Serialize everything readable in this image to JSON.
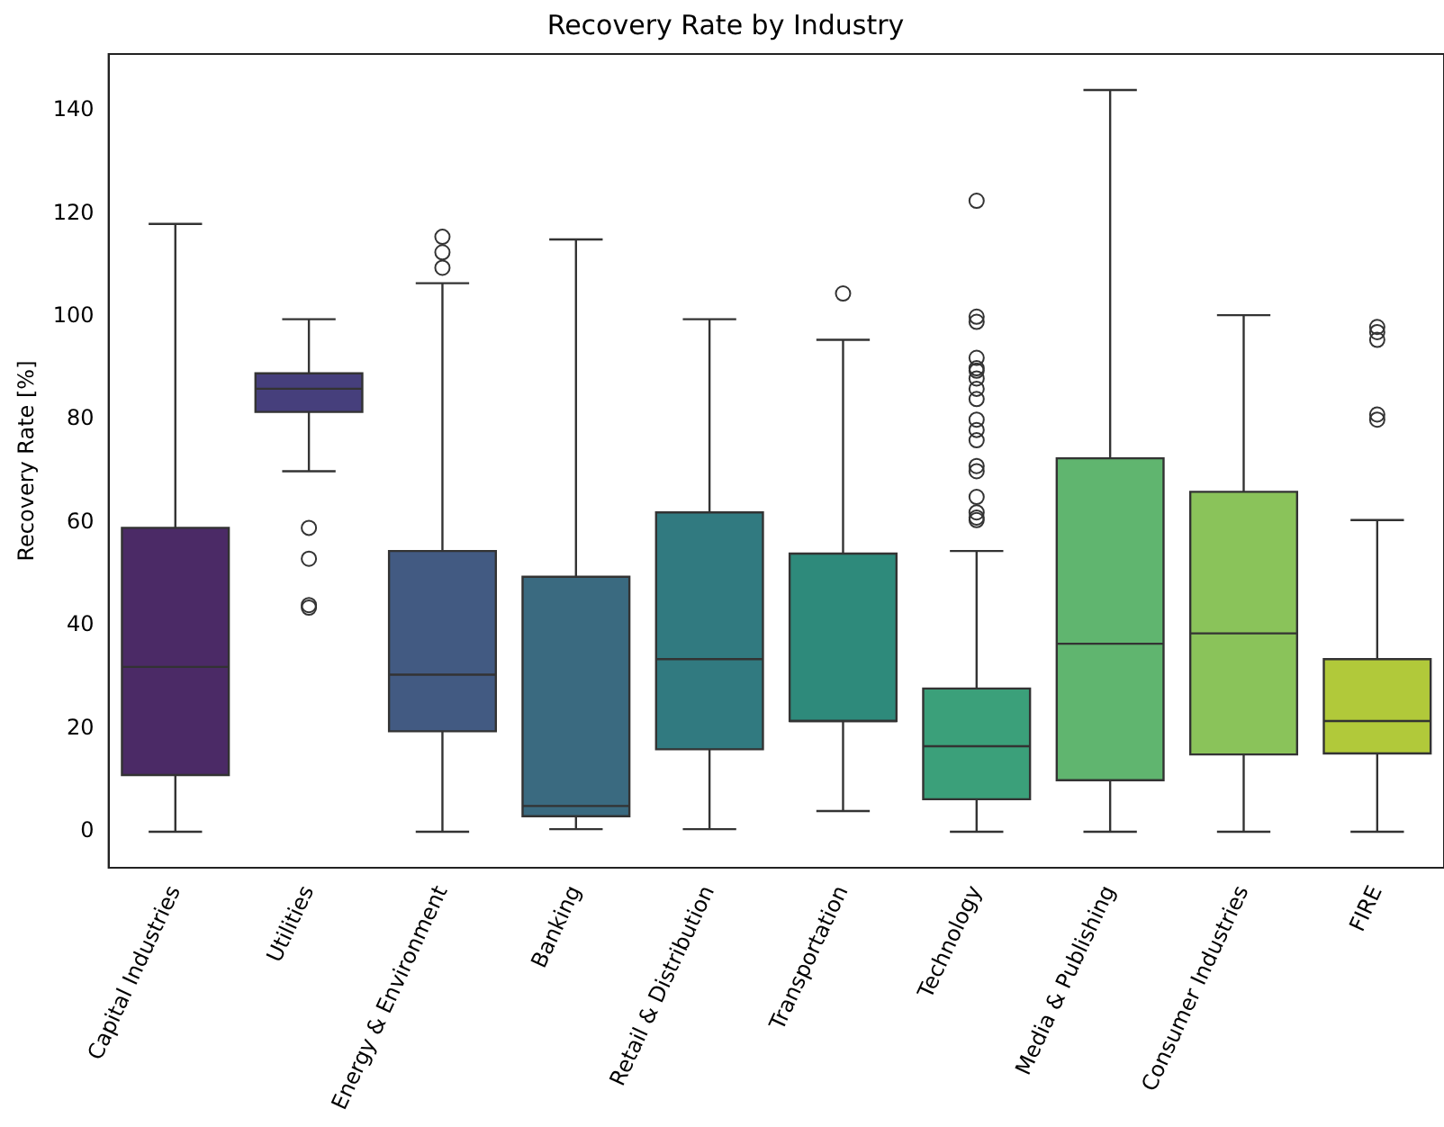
{
  "chart_data": {
    "type": "box",
    "title": "Recovery Rate by Industry",
    "ylabel": "Recovery Rate [%]",
    "categories": [
      "Capital Industries",
      "Utilities",
      "Energy & Environment",
      "Banking",
      "Retail & Distribution",
      "Transportation",
      "Technology",
      "Media & Publishing",
      "Consumer Industries",
      "FIRE"
    ],
    "colors": [
      "#4b2a66",
      "#463f7c",
      "#425a82",
      "#3a6a80",
      "#317a80",
      "#2e8a7b",
      "#3ba07a",
      "#60b56f",
      "#8ac35a",
      "#b1c93a"
    ],
    "boxes": [
      {
        "low": 0,
        "q1": 11,
        "median": 32,
        "q3": 59,
        "high": 118
      },
      {
        "low": 70,
        "q1": 81.5,
        "median": 86,
        "q3": 89,
        "high": 99.5,
        "outliers": [
          59,
          53,
          44,
          43.5
        ]
      },
      {
        "low": 0,
        "q1": 19.5,
        "median": 30.5,
        "q3": 54.5,
        "high": 106.5,
        "outliers": [
          109.5,
          112.5,
          115.5
        ]
      },
      {
        "low": 0.5,
        "q1": 3,
        "median": 5,
        "q3": 49.5,
        "high": 115
      },
      {
        "low": 0.5,
        "q1": 16,
        "median": 33.5,
        "q3": 62,
        "high": 99.5
      },
      {
        "low": 4,
        "q1": 21.5,
        "median": 21.5,
        "q3": 54,
        "high": 95.5,
        "outliers": [
          104.5
        ]
      },
      {
        "low": 0,
        "q1": 6.3,
        "median": 16.6,
        "q3": 27.8,
        "high": 54.5,
        "outliers": [
          122.5,
          100,
          99,
          92,
          90,
          89.5,
          88,
          86,
          84,
          80,
          78,
          76,
          71,
          70,
          65,
          62,
          61,
          60.5
        ]
      },
      {
        "low": 0,
        "q1": 10,
        "median": 36.5,
        "q3": 72.5,
        "high": 144
      },
      {
        "low": 0,
        "q1": 15,
        "median": 38.5,
        "q3": 66,
        "high": 100.3
      },
      {
        "low": 0,
        "q1": 15.2,
        "median": 21.5,
        "q3": 33.5,
        "high": 60.5,
        "outliers": [
          98,
          97,
          95.5,
          81,
          80
        ]
      }
    ],
    "ylim": [
      -7,
      151
    ],
    "yticks": [
      0,
      20,
      40,
      60,
      80,
      100,
      120,
      140
    ],
    "grid": false,
    "legend": false
  }
}
